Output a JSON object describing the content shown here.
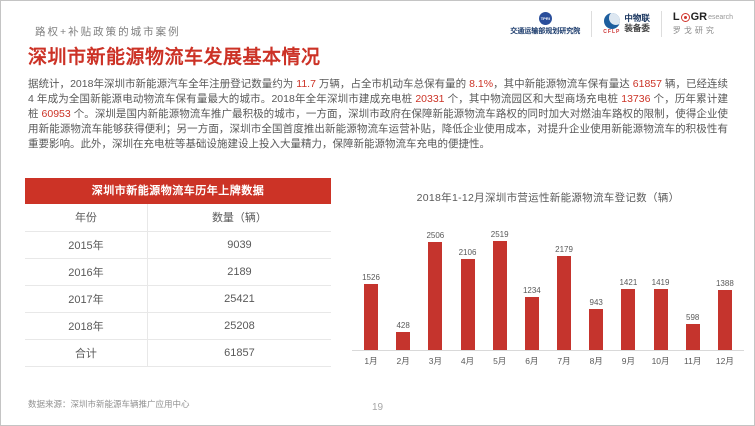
{
  "slide": {
    "eyebrow": "路权+补贴政策的城市案例",
    "title": "深圳市新能源物流车发展基本情况",
    "source": "数据来源：深圳市新能源车辆推广应用中心",
    "page_number": "19"
  },
  "logos": {
    "tpri": {
      "abbr": "TPRI",
      "caption": "交通运输部规划研究院"
    },
    "cflp": {
      "abbr": "CFLP",
      "name_line1": "中物联",
      "name_line2": "装备委"
    },
    "logr": {
      "brand_prefix": "L",
      "brand_suffix": "GR",
      "brand_tail": "esearch",
      "caption": "罗戈研究"
    }
  },
  "paragraph_segments": [
    {
      "text": "据统计，2018年深圳市新能源汽车全年注册登记数量约为 ",
      "hl": false
    },
    {
      "text": "11.7",
      "hl": true
    },
    {
      "text": " 万辆，占全市机动车总保有量的 ",
      "hl": false
    },
    {
      "text": "8.1%",
      "hl": true
    },
    {
      "text": "，其中新能源物流车保有量达 ",
      "hl": false
    },
    {
      "text": "61857",
      "hl": true
    },
    {
      "text": " 辆，已经连续 4 年成为全国新能源电动物流车保有量最大的城市。2018年全年深圳市建成充电桩 ",
      "hl": false
    },
    {
      "text": "20331",
      "hl": true
    },
    {
      "text": " 个，其中物流园区和大型商场充电桩 ",
      "hl": false
    },
    {
      "text": "13736",
      "hl": true
    },
    {
      "text": " 个，历年累计建桩 ",
      "hl": false
    },
    {
      "text": "60953",
      "hl": true
    },
    {
      "text": " 个。深圳是国内新能源物流车推广最积极的城市，一方面，深圳市政府在保障新能源物流车路权的同时加大对燃油车路权的限制，使得企业使用新能源物流车能够获得便利；另一方面，深圳市全国首度推出新能源物流车运营补贴，降低企业使用成本，对提升企业使用新能源物流车的积极性有重要影响。此外，深圳在充电桩等基础设施建设上投入大量精力，保障新能源物流车充电的便捷性。",
      "hl": false
    }
  ],
  "table": {
    "title": "深圳市新能源物流车历年上牌数据",
    "columns": [
      "年份",
      "数量（辆）"
    ],
    "rows": [
      [
        "2015年",
        "9039"
      ],
      [
        "2016年",
        "2189"
      ],
      [
        "2017年",
        "25421"
      ],
      [
        "2018年",
        "25208"
      ],
      [
        "合计",
        "61857"
      ]
    ]
  },
  "chart_data": {
    "type": "bar",
    "title": "2018年1-12月深圳市营运性新能源物流车登记数（辆）",
    "categories": [
      "1月",
      "2月",
      "3月",
      "4月",
      "5月",
      "6月",
      "7月",
      "8月",
      "9月",
      "10月",
      "11月",
      "12月"
    ],
    "values": [
      1526,
      428,
      2506,
      2106,
      2519,
      1234,
      2179,
      943,
      1421,
      1419,
      598,
      1388
    ],
    "xlabel": "",
    "ylabel": "",
    "ylim": [
      0,
      2600
    ],
    "grid": false,
    "legend": false,
    "data_labels": true,
    "bar_color": "#c5342d"
  },
  "colors": {
    "accent_red": "#cc3326",
    "body_text": "#595959",
    "muted_text": "#7f7f7f"
  }
}
